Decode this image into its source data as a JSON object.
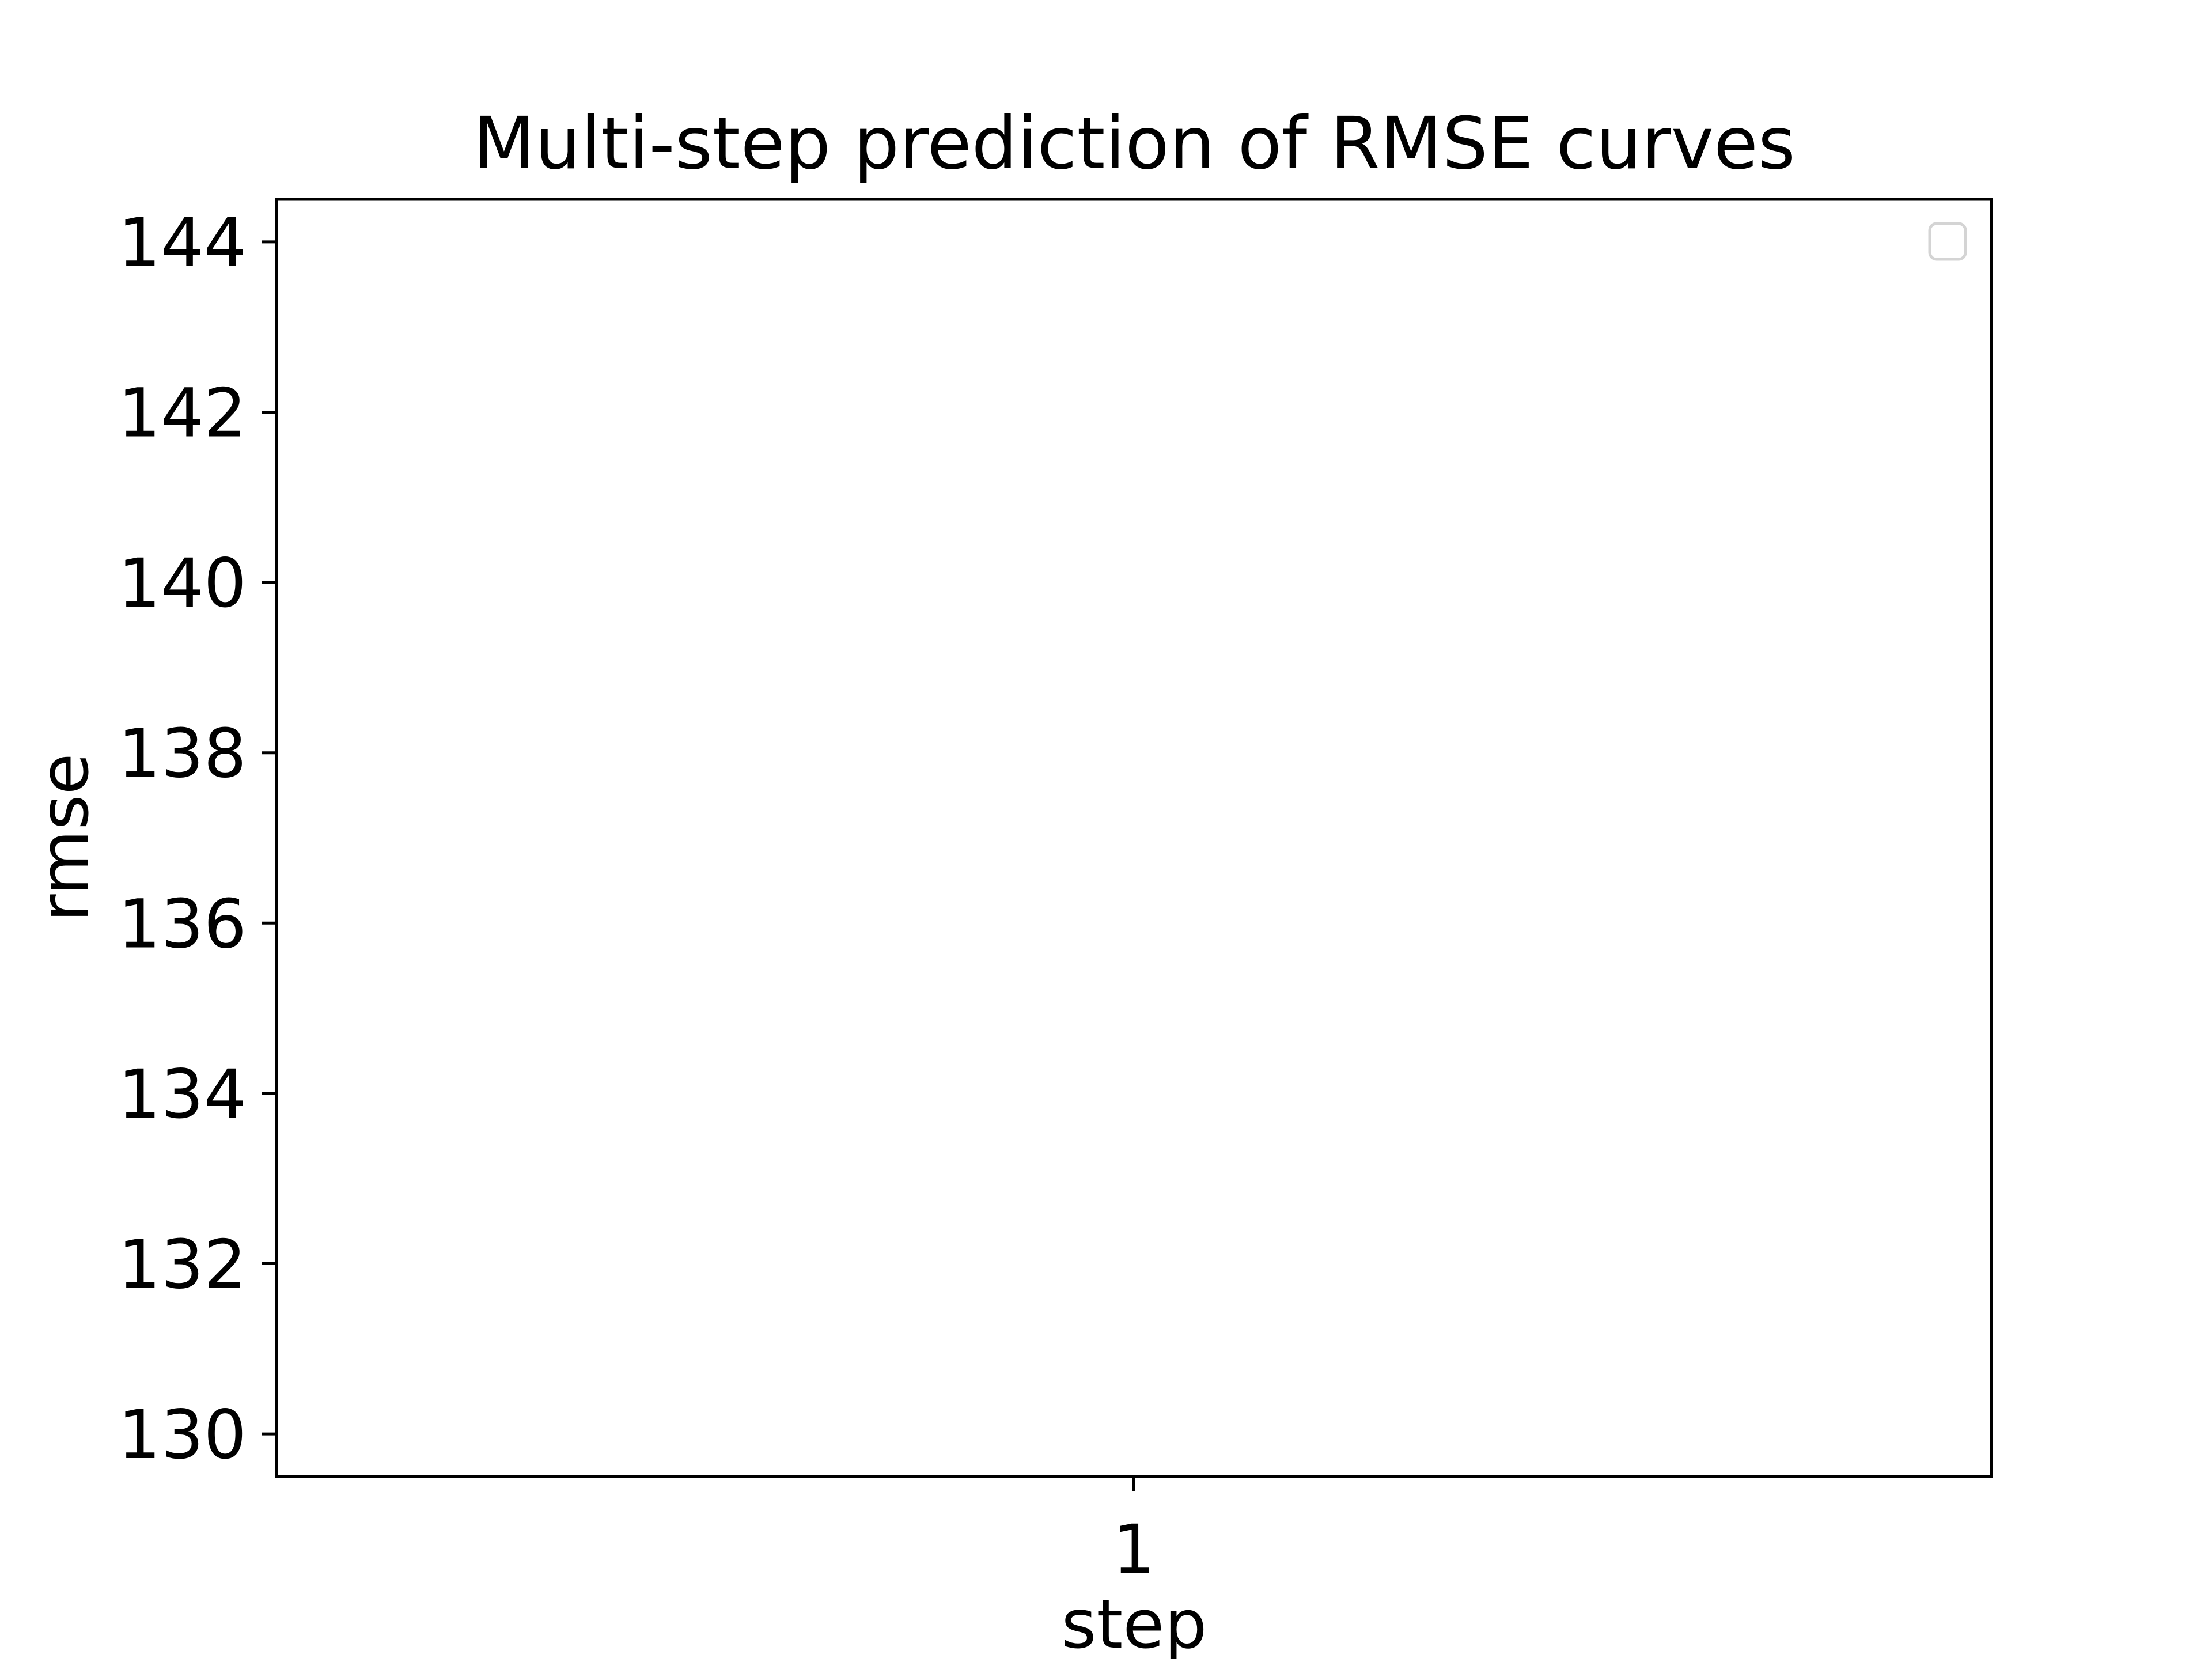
{
  "chart_data": {
    "type": "line",
    "title": "Multi-step prediction of RMSE curves",
    "xlabel": "step",
    "ylabel": "rmse",
    "x_ticks": [
      "1"
    ],
    "y_ticks": [
      130,
      132,
      134,
      136,
      138,
      140,
      142,
      144
    ],
    "xlim": [
      0.9,
      1.1
    ],
    "ylim": [
      129.5,
      144.5
    ],
    "grid": false,
    "legend_position": "top-right",
    "legend_entries": [],
    "series": []
  }
}
